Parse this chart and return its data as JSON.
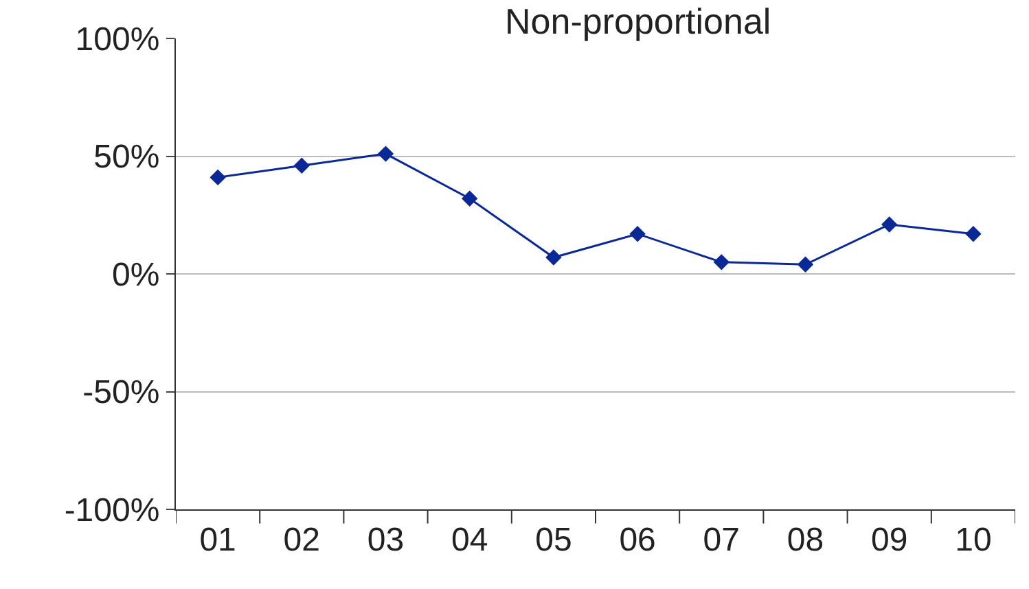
{
  "chart_data": {
    "type": "line",
    "title": "Non-proportional",
    "categories": [
      "01",
      "02",
      "03",
      "04",
      "05",
      "06",
      "07",
      "08",
      "09",
      "10"
    ],
    "series": [
      {
        "color": "#0a2896",
        "values": [
          41,
          46,
          51,
          32,
          7,
          17,
          5,
          4,
          21,
          17
        ]
      }
    ],
    "ylim": [
      -100,
      100
    ],
    "yticks": [
      {
        "value": -100,
        "label": "-100%"
      },
      {
        "value": -50,
        "label": "-50%"
      },
      {
        "value": 0,
        "label": "0%"
      },
      {
        "value": 50,
        "label": "50%"
      },
      {
        "value": 100,
        "label": "100%"
      }
    ],
    "grid": "y",
    "marker": "diamond",
    "line_style": "solid"
  }
}
